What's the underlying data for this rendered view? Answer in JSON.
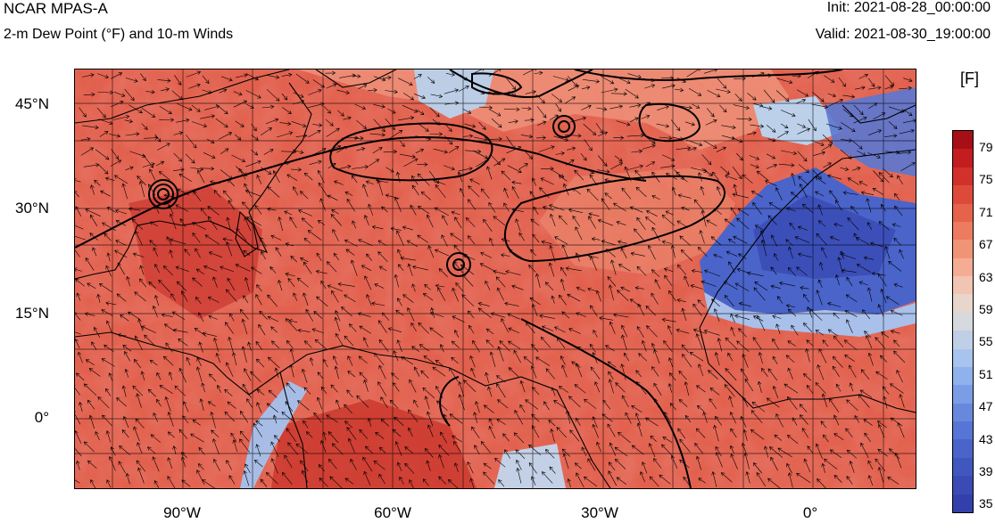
{
  "header": {
    "model_name": "NCAR MPAS-A",
    "field_title": "2-m Dew Point (°F) and 10-m Winds",
    "init_time": "Init: 2021-08-28_00:00:00",
    "valid_time": "Valid: 2021-08-30_19:00:00"
  },
  "map": {
    "lat_labels": [
      "45°N",
      "30°N",
      "15°N",
      "0°"
    ],
    "lon_labels": [
      "90°W",
      "60°W",
      "30°W",
      "0°"
    ],
    "lat_values": [
      45,
      30,
      15,
      0
    ],
    "lon_values": [
      -90,
      -60,
      -30,
      0
    ],
    "extent": {
      "lon_min": -105,
      "lon_max": 15,
      "lat_min": -10,
      "lat_max": 50
    },
    "colors": {
      "moist": "#d9534a",
      "very_moist": "#c62d2a",
      "mild": "#ee8e74",
      "neutral": "#d8dbe0",
      "dry": "#4760c8",
      "very_dry": "#3b4fb5"
    }
  },
  "colorbar": {
    "unit": "[F]",
    "tick_labels": [
      "79",
      "75",
      "71",
      "67",
      "63",
      "59",
      "55",
      "51",
      "47",
      "43",
      "39",
      "35"
    ],
    "colors": [
      "#a50f15",
      "#c31d20",
      "#d2302b",
      "#de4a3a",
      "#e5634b",
      "#ec7b5f",
      "#f19476",
      "#f4ad94",
      "#f2c4b2",
      "#e8d6cc",
      "#d6d9de",
      "#bfcfe6",
      "#a8c3ee",
      "#8fb1ec",
      "#7a9de6",
      "#6788dd",
      "#5775d4",
      "#4a64ca",
      "#4157c0",
      "#3a4bb6",
      "#3340ab"
    ]
  }
}
